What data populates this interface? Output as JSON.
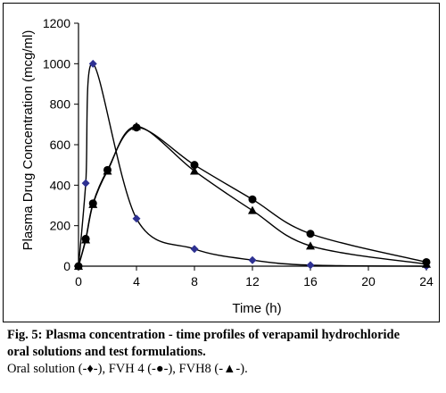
{
  "chart_data": {
    "type": "line",
    "xlabel": "Time (h)",
    "ylabel": "Plasma Drug Concentration (mcg/ml)",
    "xlim": [
      0,
      24
    ],
    "ylim": [
      0,
      1200
    ],
    "xticks": [
      0,
      4,
      8,
      12,
      16,
      20,
      24
    ],
    "yticks": [
      0,
      200,
      400,
      600,
      800,
      1000,
      1200
    ],
    "grid": false,
    "series": [
      {
        "marker": "diamond",
        "color": "#2e3192",
        "x": [
          0,
          0.5,
          1,
          4,
          8,
          12,
          16,
          24
        ],
        "y": [
          0,
          410,
          1000,
          235,
          85,
          30,
          5,
          0
        ]
      },
      {
        "marker": "circle",
        "color": "#000000",
        "x": [
          0,
          0.5,
          1,
          2,
          4,
          8,
          12,
          16,
          24
        ],
        "y": [
          0,
          135,
          310,
          475,
          685,
          500,
          330,
          160,
          20
        ]
      },
      {
        "marker": "triangle",
        "color": "#000000",
        "x": [
          0,
          0.5,
          1,
          2,
          4,
          8,
          12,
          16,
          24
        ],
        "y": [
          0,
          130,
          305,
          470,
          690,
          470,
          275,
          100,
          10
        ]
      }
    ]
  },
  "caption": {
    "line1": "Fig. 5: Plasma concentration - time profiles of verapamil hydrochloride",
    "line2": "oral solutions and test formulations.",
    "line3": "Oral solution (-♦-), FVH 4 (-●-), FVH8 (-▲-)."
  }
}
